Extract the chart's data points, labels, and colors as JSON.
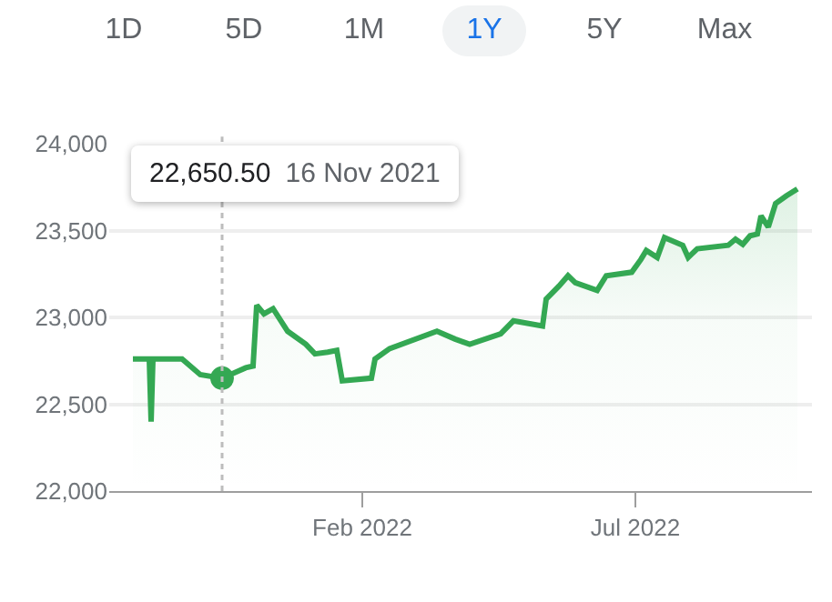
{
  "chart_data": {
    "type": "area",
    "color": "#34a853",
    "x": [
      "2021-09-28",
      "2021-10-07",
      "2021-10-08",
      "2021-10-09",
      "2021-10-25",
      "2021-11-04",
      "2021-11-16",
      "2021-11-29",
      "2021-12-03",
      "2021-12-05",
      "2021-12-09",
      "2021-12-14",
      "2021-12-22",
      "2022-01-01",
      "2022-01-06",
      "2022-01-13",
      "2022-01-18",
      "2022-01-21",
      "2022-02-06",
      "2022-02-08",
      "2022-02-16",
      "2022-03-14",
      "2022-03-24",
      "2022-04-01",
      "2022-04-18",
      "2022-04-25",
      "2022-05-11",
      "2022-05-13",
      "2022-05-20",
      "2022-05-25",
      "2022-05-29",
      "2022-06-10",
      "2022-06-15",
      "2022-06-29",
      "2022-07-04",
      "2022-07-07",
      "2022-07-13",
      "2022-07-17",
      "2022-07-27",
      "2022-07-30",
      "2022-08-04",
      "2022-08-21",
      "2022-08-25",
      "2022-08-29",
      "2022-09-02",
      "2022-09-06",
      "2022-09-08",
      "2022-09-12",
      "2022-09-16",
      "2022-09-22",
      "2022-09-28"
    ],
    "series": [
      {
        "values": [
          22760,
          22760,
          22400,
          22760,
          22760,
          22670,
          22650,
          22710,
          22720,
          23070,
          23020,
          23050,
          22920,
          22845,
          22790,
          22800,
          22810,
          22635,
          22650,
          22760,
          22820,
          22920,
          22875,
          22845,
          22905,
          22980,
          22950,
          23105,
          23180,
          23240,
          23200,
          23155,
          23240,
          23260,
          23333,
          23385,
          23345,
          23460,
          23415,
          23345,
          23395,
          23415,
          23450,
          23420,
          23470,
          23480,
          23585,
          23520,
          23655,
          23700,
          23740
        ]
      },
      {
        "type": "scatter",
        "marker": "circle",
        "x": [
          "2021-11-16"
        ],
        "values": [
          22650
        ]
      }
    ],
    "xlim": [
      "2021-09-15",
      "2022-10-06"
    ],
    "xticks": [
      {
        "value": "2022-02-01",
        "label": "Feb 2022"
      },
      {
        "value": "2022-07-01",
        "label": "Jul 2022"
      }
    ],
    "ylim": [
      22000,
      24000
    ],
    "yticks": [
      {
        "value": 22000,
        "label": "22,000"
      },
      {
        "value": 22500,
        "label": "22,500"
      },
      {
        "value": 23000,
        "label": "23,000"
      },
      {
        "value": 23500,
        "label": "23,500"
      },
      {
        "value": 24000,
        "label": "24,000"
      }
    ],
    "grid": "y",
    "ref_lines": [
      {
        "axis": "x",
        "value": "2021-11-16",
        "color": "#bdbdbd",
        "line_style": "dotted"
      }
    ],
    "annotations": [
      "1D",
      "5D",
      "1M",
      "1Y",
      "5Y",
      "Max",
      "22,650.50",
      "16 Nov 2021"
    ]
  }
}
